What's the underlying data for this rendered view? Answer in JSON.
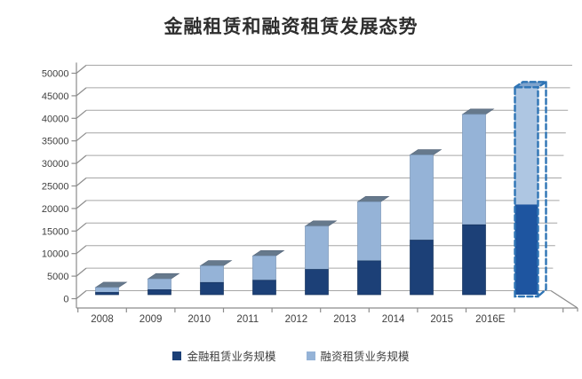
{
  "title": "金融租赁和融资租赁发展态势",
  "chart_data": {
    "type": "bar",
    "stacked": true,
    "style_3d": true,
    "title": "金融租赁和融资租赁发展态势",
    "categories": [
      "2008",
      "2009",
      "2010",
      "2011",
      "2012",
      "2013",
      "2014",
      "2015",
      "2016E"
    ],
    "series": [
      {
        "name": "金融租赁业务规模",
        "color": "#1c4077",
        "edge_color": "#16345f",
        "values": [
          500,
          1100,
          2700,
          3200,
          5600,
          7500,
          12100,
          15500,
          20000
        ]
      },
      {
        "name": "融资租赁业务规模",
        "color": "#95b3d7",
        "edge_color": "#7b97b8",
        "cap_color": "#66798c",
        "values": [
          1100,
          2400,
          3700,
          5400,
          9600,
          13100,
          18900,
          24500,
          26000
        ]
      }
    ],
    "forecast": {
      "category": "2016E",
      "outline_color": "#2e74b5",
      "dark_fill": "#1e55a0",
      "light_fill": "#aec6e2",
      "cap_fill": "#7fa3cc"
    },
    "ylim": [
      0,
      50000
    ],
    "ytick_step": 5000,
    "ytick_labels": [
      "0",
      "5000",
      "10000",
      "15000",
      "20000",
      "25000",
      "30000",
      "35000",
      "40000",
      "45000",
      "50000"
    ],
    "grid": true,
    "legend_position": "bottom",
    "grid_color": "#a6a6a6",
    "axis_color": "#8c8c8c",
    "label_color": "#404040",
    "background": "#ffffff"
  }
}
